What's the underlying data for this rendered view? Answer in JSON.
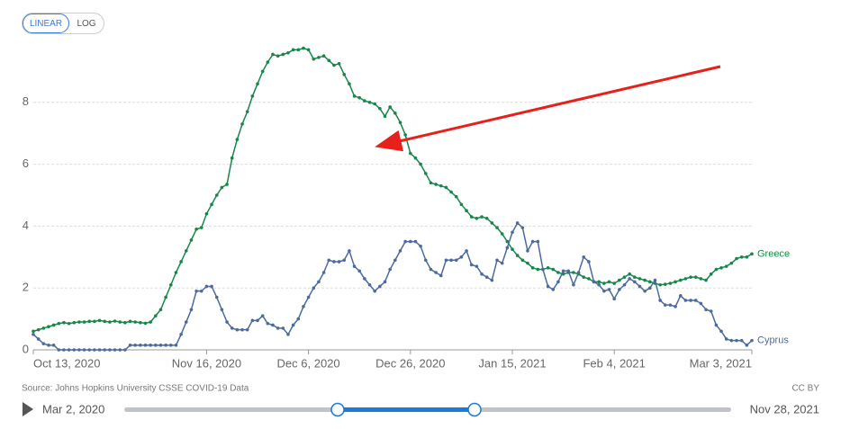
{
  "controls": {
    "scale_buttons": [
      "LINEAR",
      "LOG"
    ],
    "source": "Source: Johns Hopkins University CSSE COVID-19 Data",
    "license": "CC BY",
    "timeline": {
      "start": "Mar 2, 2020",
      "end": "Nov 28, 2021"
    }
  },
  "chart_data": {
    "type": "line",
    "x": [
      "2020-10-13",
      "2020-10-14",
      "2020-10-15",
      "2020-10-16",
      "2020-10-17",
      "2020-10-18",
      "2020-10-19",
      "2020-10-20",
      "2020-10-21",
      "2020-10-22",
      "2020-10-23",
      "2020-10-24",
      "2020-10-25",
      "2020-10-26",
      "2020-10-27",
      "2020-10-28",
      "2020-10-29",
      "2020-10-30",
      "2020-10-31",
      "2020-11-01",
      "2020-11-02",
      "2020-11-03",
      "2020-11-04",
      "2020-11-05",
      "2020-11-06",
      "2020-11-07",
      "2020-11-08",
      "2020-11-09",
      "2020-11-10",
      "2020-11-11",
      "2020-11-12",
      "2020-11-13",
      "2020-11-14",
      "2020-11-15",
      "2020-11-16",
      "2020-11-17",
      "2020-11-18",
      "2020-11-19",
      "2020-11-20",
      "2020-11-21",
      "2020-11-22",
      "2020-11-23",
      "2020-11-24",
      "2020-11-25",
      "2020-11-26",
      "2020-11-27",
      "2020-11-28",
      "2020-11-29",
      "2020-11-30",
      "2020-12-01",
      "2020-12-02",
      "2020-12-03",
      "2020-12-04",
      "2020-12-05",
      "2020-12-06",
      "2020-12-07",
      "2020-12-08",
      "2020-12-09",
      "2020-12-10",
      "2020-12-11",
      "2020-12-12",
      "2020-12-13",
      "2020-12-14",
      "2020-12-15",
      "2020-12-16",
      "2020-12-17",
      "2020-12-18",
      "2020-12-19",
      "2020-12-20",
      "2020-12-21",
      "2020-12-22",
      "2020-12-23",
      "2020-12-24",
      "2020-12-25",
      "2020-12-26",
      "2020-12-27",
      "2020-12-28",
      "2020-12-29",
      "2020-12-30",
      "2020-12-31",
      "2021-01-01",
      "2021-01-02",
      "2021-01-03",
      "2021-01-04",
      "2021-01-05",
      "2021-01-06",
      "2021-01-07",
      "2021-01-08",
      "2021-01-09",
      "2021-01-10",
      "2021-01-11",
      "2021-01-12",
      "2021-01-13",
      "2021-01-14",
      "2021-01-15",
      "2021-01-16",
      "2021-01-17",
      "2021-01-18",
      "2021-01-19",
      "2021-01-20",
      "2021-01-21",
      "2021-01-22",
      "2021-01-23",
      "2021-01-24",
      "2021-01-25",
      "2021-01-26",
      "2021-01-27",
      "2021-01-28",
      "2021-01-29",
      "2021-01-30",
      "2021-01-31",
      "2021-02-01",
      "2021-02-02",
      "2021-02-03",
      "2021-02-04",
      "2021-02-05",
      "2021-02-06",
      "2021-02-07",
      "2021-02-08",
      "2021-02-09",
      "2021-02-10",
      "2021-02-11",
      "2021-02-12",
      "2021-02-13",
      "2021-02-14",
      "2021-02-15",
      "2021-02-16",
      "2021-02-17",
      "2021-02-18",
      "2021-02-19",
      "2021-02-20",
      "2021-02-21",
      "2021-02-22",
      "2021-02-23",
      "2021-02-24",
      "2021-02-25",
      "2021-02-26",
      "2021-02-27",
      "2021-02-28",
      "2021-03-01",
      "2021-03-02",
      "2021-03-03"
    ],
    "series": [
      {
        "name": "Greece",
        "color": "#18864b",
        "values": [
          0.6,
          0.65,
          0.7,
          0.75,
          0.8,
          0.85,
          0.88,
          0.85,
          0.88,
          0.9,
          0.9,
          0.92,
          0.92,
          0.95,
          0.92,
          0.9,
          0.93,
          0.9,
          0.88,
          0.92,
          0.9,
          0.88,
          0.86,
          0.9,
          1.1,
          1.3,
          1.7,
          2.1,
          2.5,
          2.85,
          3.2,
          3.55,
          3.9,
          3.95,
          4.4,
          4.7,
          5.0,
          5.25,
          5.35,
          6.2,
          6.8,
          7.3,
          7.7,
          8.2,
          8.6,
          9.0,
          9.3,
          9.55,
          9.5,
          9.55,
          9.6,
          9.7,
          9.7,
          9.75,
          9.7,
          9.4,
          9.45,
          9.5,
          9.35,
          9.2,
          9.25,
          8.9,
          8.6,
          8.2,
          8.15,
          8.05,
          8.0,
          7.95,
          7.8,
          7.55,
          7.85,
          7.65,
          7.35,
          6.95,
          6.35,
          6.2,
          6.0,
          5.7,
          5.4,
          5.35,
          5.3,
          5.25,
          5.1,
          4.95,
          4.7,
          4.5,
          4.3,
          4.25,
          4.3,
          4.25,
          4.1,
          3.95,
          3.75,
          3.5,
          3.25,
          3.05,
          2.9,
          2.8,
          2.65,
          2.6,
          2.6,
          2.65,
          2.6,
          2.5,
          2.45,
          2.5,
          2.5,
          2.45,
          2.35,
          2.3,
          2.2,
          2.2,
          2.15,
          2.2,
          2.15,
          2.25,
          2.35,
          2.45,
          2.35,
          2.3,
          2.25,
          2.2,
          2.15,
          2.1,
          2.12,
          2.15,
          2.2,
          2.25,
          2.3,
          2.35,
          2.35,
          2.3,
          2.25,
          2.45,
          2.6,
          2.65,
          2.7,
          2.8,
          2.95,
          3.0,
          3.0,
          3.1
        ]
      },
      {
        "name": "Cyprus",
        "color": "#4c6a9c",
        "values": [
          0.5,
          0.35,
          0.2,
          0.15,
          0.15,
          0,
          0,
          0,
          0,
          0,
          0,
          0,
          0,
          0,
          0,
          0,
          0,
          0,
          0,
          0.15,
          0.15,
          0.15,
          0.15,
          0.15,
          0.15,
          0.15,
          0.15,
          0.15,
          0.15,
          0.5,
          0.9,
          1.3,
          1.9,
          1.9,
          2.05,
          2.05,
          1.7,
          1.3,
          0.9,
          0.7,
          0.65,
          0.65,
          0.65,
          0.95,
          0.95,
          1.1,
          0.85,
          0.8,
          0.7,
          0.7,
          0.5,
          0.8,
          1.0,
          1.4,
          1.7,
          2.0,
          2.2,
          2.5,
          2.9,
          2.85,
          2.85,
          2.9,
          3.2,
          2.7,
          2.55,
          2.3,
          2.1,
          1.9,
          2.05,
          2.2,
          2.6,
          2.9,
          3.2,
          3.5,
          3.5,
          3.5,
          3.35,
          2.9,
          2.6,
          2.5,
          2.4,
          2.9,
          2.9,
          2.9,
          3.0,
          3.2,
          2.75,
          2.7,
          2.45,
          2.35,
          2.25,
          2.9,
          2.8,
          3.3,
          3.8,
          4.1,
          3.95,
          3.2,
          3.5,
          3.5,
          2.6,
          2.05,
          1.95,
          2.2,
          2.55,
          2.55,
          2.1,
          2.5,
          3.0,
          2.85,
          2.2,
          2.1,
          1.9,
          1.95,
          1.65,
          1.95,
          2.1,
          2.3,
          2.2,
          2.05,
          1.9,
          2.0,
          2.25,
          1.6,
          1.45,
          1.45,
          1.4,
          1.75,
          1.6,
          1.6,
          1.6,
          1.5,
          1.3,
          1.25,
          0.8,
          0.6,
          0.35,
          0.3,
          0.3,
          0.3,
          0.15,
          0.3
        ]
      }
    ],
    "xlim": [
      "2020-10-13",
      "2021-03-03"
    ],
    "xticks": [
      {
        "value": "2020-10-13",
        "label": "Oct 13, 2020"
      },
      {
        "value": "2020-11-16",
        "label": "Nov 16, 2020"
      },
      {
        "value": "2020-12-06",
        "label": "Dec 6, 2020"
      },
      {
        "value": "2020-12-26",
        "label": "Dec 26, 2020"
      },
      {
        "value": "2021-01-15",
        "label": "Jan 15, 2021"
      },
      {
        "value": "2021-02-04",
        "label": "Feb 4, 2021"
      },
      {
        "value": "2021-03-03",
        "label": "Mar 3, 2021"
      }
    ],
    "ylim": [
      0,
      10
    ],
    "yticks": [
      0,
      2,
      4,
      6,
      8
    ],
    "grid": true
  }
}
